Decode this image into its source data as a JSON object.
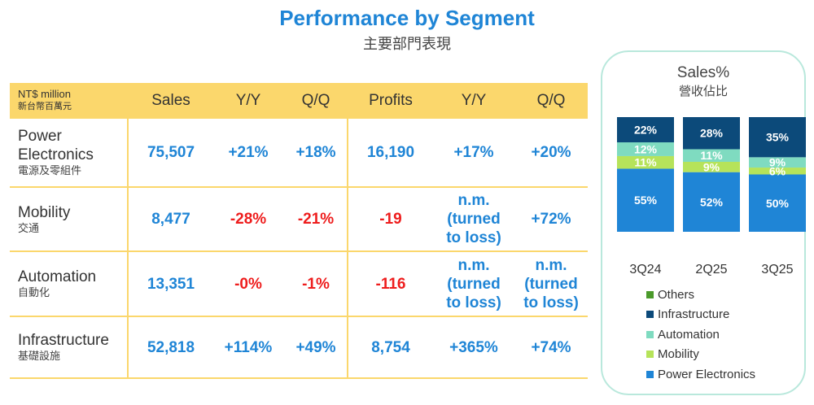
{
  "header": {
    "title": "Performance by Segment",
    "subtitle": "主要部門表現"
  },
  "table": {
    "unit_en": "NT$ million",
    "unit_cn": "新台幣百萬元",
    "columns": [
      "Sales",
      "Y/Y",
      "Q/Q",
      "Profits",
      "Y/Y",
      "Q/Q"
    ],
    "rows": [
      {
        "name": "Power Electronics",
        "name_cn": "電源及零組件",
        "values": [
          "75,507",
          "+21%",
          "+18%",
          "16,190",
          "+17%",
          "+20%"
        ],
        "tones": [
          "pos",
          "pos",
          "pos",
          "pos",
          "pos",
          "pos"
        ]
      },
      {
        "name": "Mobility",
        "name_cn": "交通",
        "values": [
          "8,477",
          "-28%",
          "-21%",
          "-19",
          "n.m.\n(turned\nto loss)",
          "+72%"
        ],
        "tones": [
          "pos",
          "neg",
          "neg",
          "neg",
          "pos",
          "pos"
        ]
      },
      {
        "name": "Automation",
        "name_cn": "自動化",
        "values": [
          "13,351",
          "-0%",
          "-1%",
          "-116",
          "n.m.\n(turned\nto loss)",
          "n.m.\n(turned\nto loss)"
        ],
        "tones": [
          "pos",
          "neg",
          "neg",
          "neg",
          "pos",
          "pos"
        ]
      },
      {
        "name": "Infrastructure",
        "name_cn": "基礎設施",
        "values": [
          "52,818",
          "+114%",
          "+49%",
          "8,754",
          "+365%",
          "+74%"
        ],
        "tones": [
          "pos",
          "pos",
          "pos",
          "pos",
          "pos",
          "pos"
        ]
      }
    ]
  },
  "colors": {
    "positive": "#1f85d6",
    "negative": "#ee1d1d",
    "table_accent": "#fbd76c",
    "panel_border": "#b9e8dc"
  },
  "chart_data": {
    "type": "bar",
    "stacked": true,
    "percent": true,
    "title": "Sales%",
    "subtitle": "營收佔比",
    "categories": [
      "3Q24",
      "2Q25",
      "3Q25"
    ],
    "ylim": [
      0,
      100
    ],
    "legend_position": "bottom",
    "series": [
      {
        "name": "Power Electronics",
        "color": "#1f85d6",
        "values": [
          55,
          52,
          50
        ],
        "labels": [
          "55%",
          "52%",
          "50%"
        ]
      },
      {
        "name": "Mobility",
        "color": "#b6e35a",
        "values": [
          11,
          9,
          6
        ],
        "labels": [
          "11%",
          "9%",
          "6%"
        ]
      },
      {
        "name": "Automation",
        "color": "#7fdbc0",
        "values": [
          12,
          11,
          9
        ],
        "labels": [
          "12%",
          "11%",
          "9%"
        ]
      },
      {
        "name": "Infrastructure",
        "color": "#0c4a7a",
        "values": [
          22,
          28,
          35
        ],
        "labels": [
          "22%",
          "28%",
          "35%"
        ]
      },
      {
        "name": "Others",
        "color": "#4b9a2b",
        "values": [
          0,
          0,
          0
        ],
        "labels": [
          "",
          "",
          ""
        ]
      }
    ],
    "legend_order": [
      "Others",
      "Infrastructure",
      "Automation",
      "Mobility",
      "Power Electronics"
    ]
  }
}
